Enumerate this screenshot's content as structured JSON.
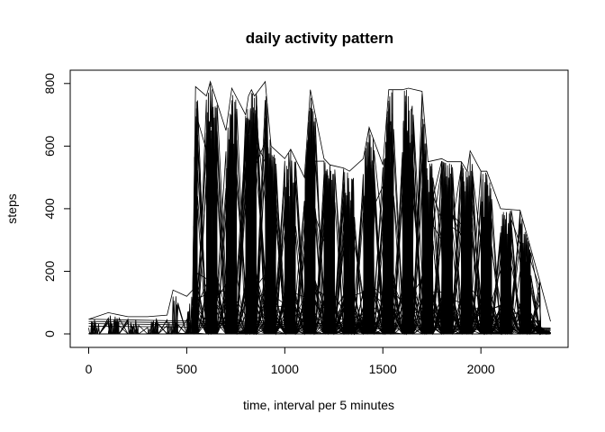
{
  "chart_data": {
    "type": "line",
    "title": "daily activity pattern",
    "xlabel": "time, interval per 5 minutes",
    "ylabel": "steps",
    "xlim": [
      0,
      2355
    ],
    "ylim": [
      0,
      806
    ],
    "x_ticks": [
      0,
      500,
      1000,
      1500,
      2000
    ],
    "y_ticks": [
      0,
      200,
      400,
      600,
      800
    ],
    "grid": false,
    "legend": "none",
    "line_color": "#000000",
    "x_domain": "interval (hhmm)",
    "envelope": [
      {
        "x": 0,
        "y": 47
      },
      {
        "x": 100,
        "y": 68
      },
      {
        "x": 200,
        "y": 55
      },
      {
        "x": 300,
        "y": 55
      },
      {
        "x": 400,
        "y": 60
      },
      {
        "x": 430,
        "y": 140
      },
      {
        "x": 500,
        "y": 120
      },
      {
        "x": 530,
        "y": 140
      },
      {
        "x": 545,
        "y": 790
      },
      {
        "x": 600,
        "y": 760
      },
      {
        "x": 620,
        "y": 806
      },
      {
        "x": 700,
        "y": 650
      },
      {
        "x": 730,
        "y": 785
      },
      {
        "x": 800,
        "y": 700
      },
      {
        "x": 815,
        "y": 760
      },
      {
        "x": 830,
        "y": 780
      },
      {
        "x": 845,
        "y": 760
      },
      {
        "x": 900,
        "y": 806
      },
      {
        "x": 930,
        "y": 600
      },
      {
        "x": 1000,
        "y": 560
      },
      {
        "x": 1030,
        "y": 590
      },
      {
        "x": 1100,
        "y": 500
      },
      {
        "x": 1130,
        "y": 780
      },
      {
        "x": 1200,
        "y": 560
      },
      {
        "x": 1230,
        "y": 540
      },
      {
        "x": 1300,
        "y": 530
      },
      {
        "x": 1330,
        "y": 520
      },
      {
        "x": 1400,
        "y": 560
      },
      {
        "x": 1430,
        "y": 660
      },
      {
        "x": 1500,
        "y": 540
      },
      {
        "x": 1530,
        "y": 780
      },
      {
        "x": 1600,
        "y": 780
      },
      {
        "x": 1630,
        "y": 785
      },
      {
        "x": 1700,
        "y": 775
      },
      {
        "x": 1730,
        "y": 550
      },
      {
        "x": 1800,
        "y": 560
      },
      {
        "x": 1830,
        "y": 550
      },
      {
        "x": 1900,
        "y": 550
      },
      {
        "x": 1930,
        "y": 520
      },
      {
        "x": 1945,
        "y": 585
      },
      {
        "x": 2000,
        "y": 520
      },
      {
        "x": 2030,
        "y": 520
      },
      {
        "x": 2100,
        "y": 400
      },
      {
        "x": 2200,
        "y": 395
      },
      {
        "x": 2300,
        "y": 170
      },
      {
        "x": 2355,
        "y": 40
      }
    ]
  }
}
